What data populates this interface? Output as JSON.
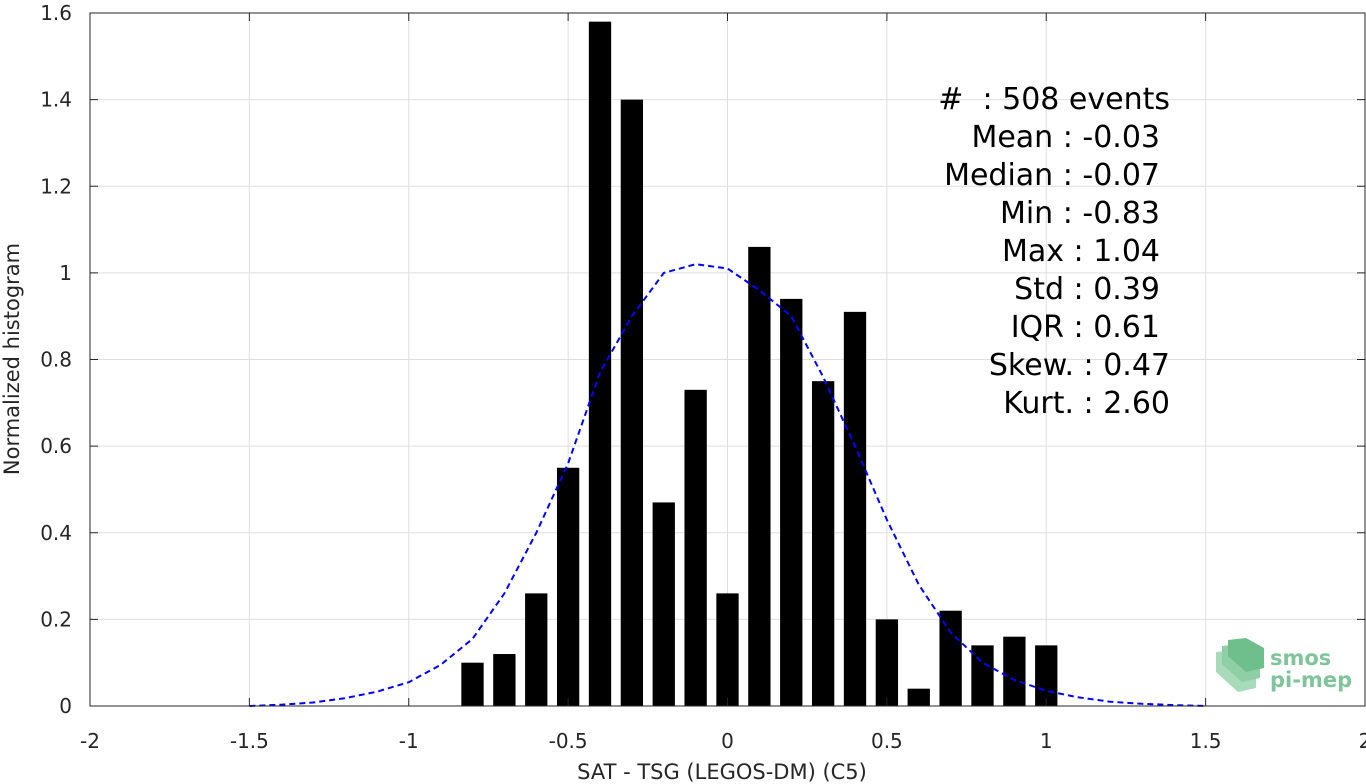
{
  "chart_data": {
    "type": "bar",
    "title": "",
    "xlabel": "SAT - TSG (LEGOS-DM) (C5)",
    "ylabel": "Normalized histogram",
    "xlim": [
      -2,
      2
    ],
    "ylim": [
      0,
      1.6
    ],
    "grid": true,
    "bar_width": 0.07,
    "xticks": [
      -2,
      -1.5,
      -1,
      -0.5,
      0,
      0.5,
      1,
      1.5,
      2
    ],
    "xtick_labels": [
      "-2",
      "-1.5",
      "-1",
      "-0.5",
      "0",
      "0.5",
      "1",
      "1.5",
      "2"
    ],
    "yticks": [
      0,
      0.2,
      0.4,
      0.6,
      0.8,
      1,
      1.2,
      1.4,
      1.6
    ],
    "ytick_labels": [
      "0",
      "0.2",
      "0.4",
      "0.6",
      "0.8",
      "1",
      "1.2",
      "1.4",
      "1.6"
    ],
    "bars": {
      "x": [
        -0.8,
        -0.7,
        -0.6,
        -0.5,
        -0.4,
        -0.3,
        -0.2,
        -0.1,
        0.0,
        0.1,
        0.2,
        0.3,
        0.4,
        0.5,
        0.6,
        0.7,
        0.8,
        0.9,
        1.0
      ],
      "values": [
        0.1,
        0.12,
        0.26,
        0.55,
        1.58,
        1.4,
        0.47,
        0.73,
        0.26,
        1.06,
        0.94,
        0.75,
        0.91,
        0.2,
        0.04,
        0.22,
        0.14,
        0.16,
        0.14
      ],
      "color": "#000000"
    },
    "fit_curve": {
      "style": "dashed",
      "color": "#0000ff",
      "x": [
        -1.5,
        -1.4,
        -1.3,
        -1.2,
        -1.1,
        -1.0,
        -0.9,
        -0.8,
        -0.7,
        -0.6,
        -0.5,
        -0.4,
        -0.3,
        -0.2,
        -0.1,
        0.0,
        0.1,
        0.2,
        0.3,
        0.4,
        0.5,
        0.6,
        0.7,
        0.8,
        0.9,
        1.0,
        1.1,
        1.2,
        1.3,
        1.4,
        1.5
      ],
      "y": [
        0.0,
        0.003,
        0.008,
        0.018,
        0.033,
        0.055,
        0.095,
        0.155,
        0.26,
        0.4,
        0.56,
        0.77,
        0.9,
        1.0,
        1.02,
        1.01,
        0.96,
        0.9,
        0.76,
        0.6,
        0.43,
        0.28,
        0.17,
        0.1,
        0.06,
        0.035,
        0.02,
        0.01,
        0.005,
        0.002,
        0.0
      ]
    }
  },
  "stats": {
    "count": "#  : 508 events",
    "mean": "Mean : -0.03",
    "median": "Median : -0.07",
    "min": "Min : -0.83",
    "max": "Max : 1.04",
    "std": "Std : 0.39",
    "iqr": "IQR : 0.61",
    "skew": "Skew. : 0.47",
    "kurt": "Kurt. : 2.60"
  },
  "logo": {
    "line1": "smos",
    "line2": "pi-mep",
    "color": "#7fc49a"
  }
}
